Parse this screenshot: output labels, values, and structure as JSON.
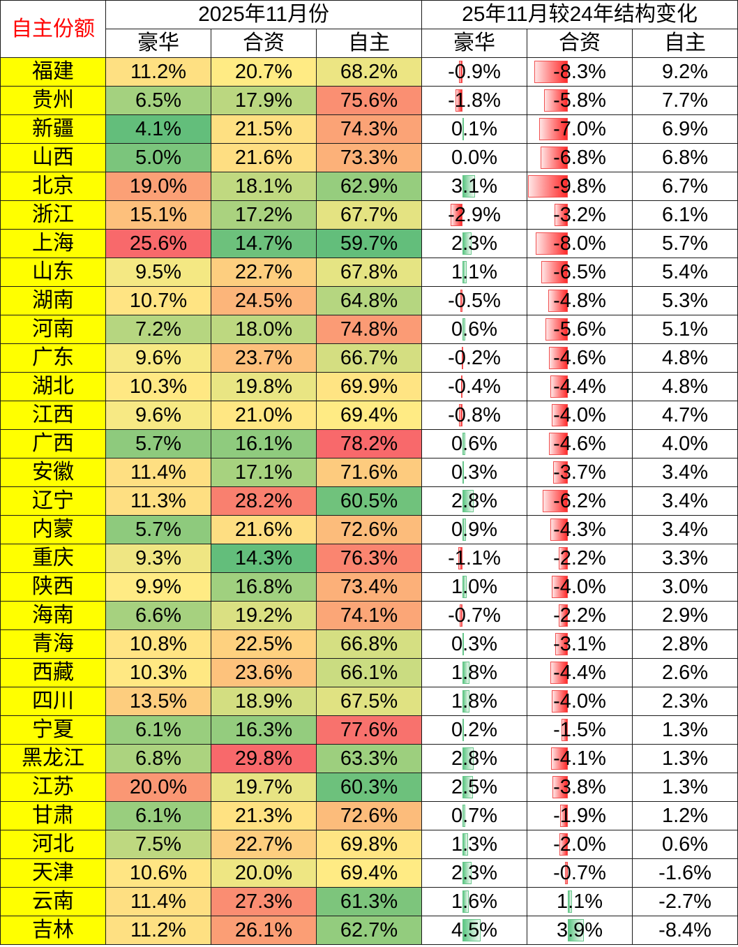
{
  "header": {
    "corner_label": "自主份额",
    "group_left": "2025年11月份",
    "group_right": "25年11月较24年结构变化",
    "sub_left": [
      "豪华",
      "合资",
      "自主"
    ],
    "sub_right": [
      "豪华",
      "合资",
      "自主"
    ]
  },
  "rows": [
    {
      "province": "福建",
      "lux": "11.2%",
      "jv": "20.7%",
      "own": "68.2%",
      "d_lux": "-0.9%",
      "d_jv": "-8.3%",
      "d_own": "9.2%"
    },
    {
      "province": "贵州",
      "lux": "6.5%",
      "jv": "17.9%",
      "own": "75.6%",
      "d_lux": "-1.8%",
      "d_jv": "-5.8%",
      "d_own": "7.7%"
    },
    {
      "province": "新疆",
      "lux": "4.1%",
      "jv": "21.5%",
      "own": "74.3%",
      "d_lux": "0.1%",
      "d_jv": "-7.0%",
      "d_own": "6.9%"
    },
    {
      "province": "山西",
      "lux": "5.0%",
      "jv": "21.6%",
      "own": "73.3%",
      "d_lux": "0.0%",
      "d_jv": "-6.8%",
      "d_own": "6.8%"
    },
    {
      "province": "北京",
      "lux": "19.0%",
      "jv": "18.1%",
      "own": "62.9%",
      "d_lux": "3.1%",
      "d_jv": "-9.8%",
      "d_own": "6.7%"
    },
    {
      "province": "浙江",
      "lux": "15.1%",
      "jv": "17.2%",
      "own": "67.7%",
      "d_lux": "-2.9%",
      "d_jv": "-3.2%",
      "d_own": "6.1%"
    },
    {
      "province": "上海",
      "lux": "25.6%",
      "jv": "14.7%",
      "own": "59.7%",
      "d_lux": "2.3%",
      "d_jv": "-8.0%",
      "d_own": "5.7%"
    },
    {
      "province": "山东",
      "lux": "9.5%",
      "jv": "22.7%",
      "own": "67.8%",
      "d_lux": "1.1%",
      "d_jv": "-6.5%",
      "d_own": "5.4%"
    },
    {
      "province": "湖南",
      "lux": "10.7%",
      "jv": "24.5%",
      "own": "64.8%",
      "d_lux": "-0.5%",
      "d_jv": "-4.8%",
      "d_own": "5.3%"
    },
    {
      "province": "河南",
      "lux": "7.2%",
      "jv": "18.0%",
      "own": "74.8%",
      "d_lux": "0.6%",
      "d_jv": "-5.6%",
      "d_own": "5.1%"
    },
    {
      "province": "广东",
      "lux": "9.6%",
      "jv": "23.7%",
      "own": "66.7%",
      "d_lux": "-0.2%",
      "d_jv": "-4.6%",
      "d_own": "4.8%"
    },
    {
      "province": "湖北",
      "lux": "10.3%",
      "jv": "19.8%",
      "own": "69.9%",
      "d_lux": "-0.4%",
      "d_jv": "-4.4%",
      "d_own": "4.8%"
    },
    {
      "province": "江西",
      "lux": "9.6%",
      "jv": "21.0%",
      "own": "69.4%",
      "d_lux": "-0.8%",
      "d_jv": "-4.0%",
      "d_own": "4.7%"
    },
    {
      "province": "广西",
      "lux": "5.7%",
      "jv": "16.1%",
      "own": "78.2%",
      "d_lux": "0.6%",
      "d_jv": "-4.6%",
      "d_own": "4.0%"
    },
    {
      "province": "安徽",
      "lux": "11.4%",
      "jv": "17.1%",
      "own": "71.6%",
      "d_lux": "0.3%",
      "d_jv": "-3.7%",
      "d_own": "3.4%"
    },
    {
      "province": "辽宁",
      "lux": "11.3%",
      "jv": "28.2%",
      "own": "60.5%",
      "d_lux": "2.8%",
      "d_jv": "-6.2%",
      "d_own": "3.4%"
    },
    {
      "province": "内蒙",
      "lux": "5.7%",
      "jv": "21.6%",
      "own": "72.6%",
      "d_lux": "0.9%",
      "d_jv": "-4.3%",
      "d_own": "3.4%"
    },
    {
      "province": "重庆",
      "lux": "9.3%",
      "jv": "14.3%",
      "own": "76.3%",
      "d_lux": "-1.1%",
      "d_jv": "-2.2%",
      "d_own": "3.3%"
    },
    {
      "province": "陕西",
      "lux": "9.9%",
      "jv": "16.8%",
      "own": "73.4%",
      "d_lux": "1.0%",
      "d_jv": "-4.0%",
      "d_own": "3.0%"
    },
    {
      "province": "海南",
      "lux": "6.6%",
      "jv": "19.2%",
      "own": "74.1%",
      "d_lux": "-0.7%",
      "d_jv": "-2.2%",
      "d_own": "2.9%"
    },
    {
      "province": "青海",
      "lux": "10.8%",
      "jv": "22.5%",
      "own": "66.8%",
      "d_lux": "0.3%",
      "d_jv": "-3.1%",
      "d_own": "2.8%"
    },
    {
      "province": "西藏",
      "lux": "10.3%",
      "jv": "23.6%",
      "own": "66.1%",
      "d_lux": "1.8%",
      "d_jv": "-4.4%",
      "d_own": "2.6%"
    },
    {
      "province": "四川",
      "lux": "13.5%",
      "jv": "18.9%",
      "own": "67.5%",
      "d_lux": "1.8%",
      "d_jv": "-4.0%",
      "d_own": "2.3%"
    },
    {
      "province": "宁夏",
      "lux": "6.1%",
      "jv": "16.3%",
      "own": "77.6%",
      "d_lux": "0.2%",
      "d_jv": "-1.5%",
      "d_own": "1.3%"
    },
    {
      "province": "黑龙江",
      "lux": "6.8%",
      "jv": "29.8%",
      "own": "63.3%",
      "d_lux": "2.8%",
      "d_jv": "-4.1%",
      "d_own": "1.3%"
    },
    {
      "province": "江苏",
      "lux": "20.0%",
      "jv": "19.7%",
      "own": "60.3%",
      "d_lux": "2.5%",
      "d_jv": "-3.8%",
      "d_own": "1.3%"
    },
    {
      "province": "甘肃",
      "lux": "6.1%",
      "jv": "21.3%",
      "own": "72.6%",
      "d_lux": "0.7%",
      "d_jv": "-1.9%",
      "d_own": "1.2%"
    },
    {
      "province": "河北",
      "lux": "7.5%",
      "jv": "22.7%",
      "own": "69.8%",
      "d_lux": "1.3%",
      "d_jv": "-2.0%",
      "d_own": "0.6%"
    },
    {
      "province": "天津",
      "lux": "10.6%",
      "jv": "20.0%",
      "own": "69.4%",
      "d_lux": "2.3%",
      "d_jv": "-0.7%",
      "d_own": "-1.6%"
    },
    {
      "province": "云南",
      "lux": "11.4%",
      "jv": "27.3%",
      "own": "61.3%",
      "d_lux": "1.6%",
      "d_jv": "1.1%",
      "d_own": "-2.7%"
    },
    {
      "province": "吉林",
      "lux": "11.2%",
      "jv": "26.1%",
      "own": "62.7%",
      "d_lux": "4.5%",
      "d_jv": "3.9%",
      "d_own": "-8.4%"
    }
  ],
  "colors": {
    "province_fill": "#ffff00",
    "corner_text": "#ff0000",
    "scale_low": "#63be7b",
    "scale_mid": "#ffeb84",
    "scale_high": "#f8696b",
    "bar_negative": "#ff2a2a",
    "bar_positive": "#5cc683"
  }
}
